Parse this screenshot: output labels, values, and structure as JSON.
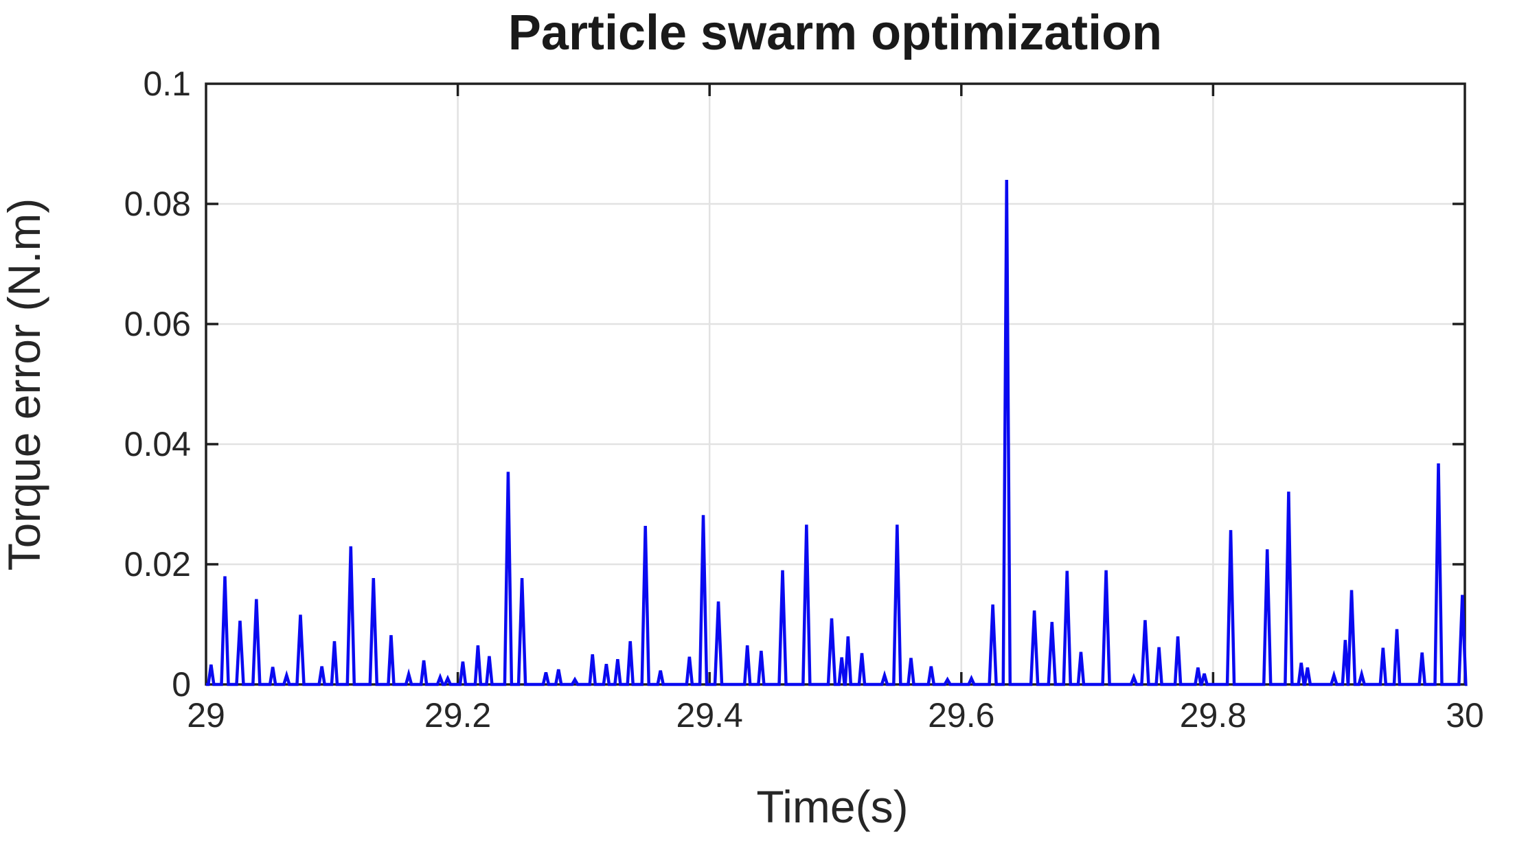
{
  "chart_data": {
    "type": "line",
    "title": "Particle swarm optimization",
    "xlabel": "Time(s)",
    "ylabel": "Torque error (N.m)",
    "xlim": [
      29,
      30
    ],
    "ylim": [
      0,
      0.1
    ],
    "x_ticks": [
      29,
      29.2,
      29.4,
      29.6,
      29.8,
      30
    ],
    "x_tick_labels": [
      "29",
      "29.2",
      "29.4",
      "29.6",
      "29.8",
      "30"
    ],
    "y_ticks": [
      0,
      0.02,
      0.04,
      0.06,
      0.08,
      0.1
    ],
    "y_tick_labels": [
      "0",
      "0.02",
      "0.04",
      "0.06",
      "0.08",
      "0.1"
    ],
    "grid": true,
    "legend": false,
    "series": [
      {
        "name": "torque error",
        "baseline": 0,
        "spikes": [
          [
            29.004,
            0.0033
          ],
          [
            29.015,
            0.018
          ],
          [
            29.027,
            0.0106
          ],
          [
            29.04,
            0.0142
          ],
          [
            29.053,
            0.0029
          ],
          [
            29.064,
            0.0015
          ],
          [
            29.075,
            0.0116
          ],
          [
            29.092,
            0.003
          ],
          [
            29.102,
            0.0072
          ],
          [
            29.115,
            0.023
          ],
          [
            29.133,
            0.0177
          ],
          [
            29.147,
            0.0082
          ],
          [
            29.161,
            0.0017
          ],
          [
            29.173,
            0.004
          ],
          [
            29.186,
            0.0012
          ],
          [
            29.192,
            0.001
          ],
          [
            29.204,
            0.0038
          ],
          [
            29.216,
            0.0065
          ],
          [
            29.225,
            0.0047
          ],
          [
            29.24,
            0.0354
          ],
          [
            29.251,
            0.0177
          ],
          [
            29.27,
            0.002
          ],
          [
            29.28,
            0.0025
          ],
          [
            29.293,
            0.0008
          ],
          [
            29.307,
            0.005
          ],
          [
            29.318,
            0.0034
          ],
          [
            29.327,
            0.0042
          ],
          [
            29.337,
            0.0072
          ],
          [
            29.349,
            0.0264
          ],
          [
            29.361,
            0.0023
          ],
          [
            29.384,
            0.0046
          ],
          [
            29.395,
            0.0282
          ],
          [
            29.407,
            0.0138
          ],
          [
            29.43,
            0.0065
          ],
          [
            29.441,
            0.0056
          ],
          [
            29.458,
            0.019
          ],
          [
            29.477,
            0.0266
          ],
          [
            29.497,
            0.011
          ],
          [
            29.505,
            0.0045
          ],
          [
            29.51,
            0.008
          ],
          [
            29.521,
            0.0052
          ],
          [
            29.539,
            0.0015
          ],
          [
            29.549,
            0.0266
          ],
          [
            29.56,
            0.0044
          ],
          [
            29.576,
            0.003
          ],
          [
            29.589,
            0.0008
          ],
          [
            29.608,
            0.001
          ],
          [
            29.625,
            0.0133
          ],
          [
            29.636,
            0.084
          ],
          [
            29.658,
            0.0123
          ],
          [
            29.672,
            0.0104
          ],
          [
            29.684,
            0.0189
          ],
          [
            29.695,
            0.0054
          ],
          [
            29.715,
            0.019
          ],
          [
            29.737,
            0.0012
          ],
          [
            29.746,
            0.0107
          ],
          [
            29.757,
            0.0062
          ],
          [
            29.772,
            0.008
          ],
          [
            29.788,
            0.0028
          ],
          [
            29.793,
            0.0018
          ],
          [
            29.814,
            0.0257
          ],
          [
            29.843,
            0.0225
          ],
          [
            29.86,
            0.0321
          ],
          [
            29.87,
            0.0036
          ],
          [
            29.875,
            0.0028
          ],
          [
            29.896,
            0.0015
          ],
          [
            29.905,
            0.0074
          ],
          [
            29.91,
            0.0157
          ],
          [
            29.918,
            0.0017
          ],
          [
            29.935,
            0.0061
          ],
          [
            29.946,
            0.0092
          ],
          [
            29.966,
            0.0053
          ],
          [
            29.979,
            0.0368
          ],
          [
            29.998,
            0.0149
          ]
        ]
      }
    ],
    "colors": {
      "line": "#0a0af0",
      "axis": "#1f1f1f",
      "grid": "#e2e2e2",
      "text": "#262626",
      "background": "#ffffff"
    }
  }
}
